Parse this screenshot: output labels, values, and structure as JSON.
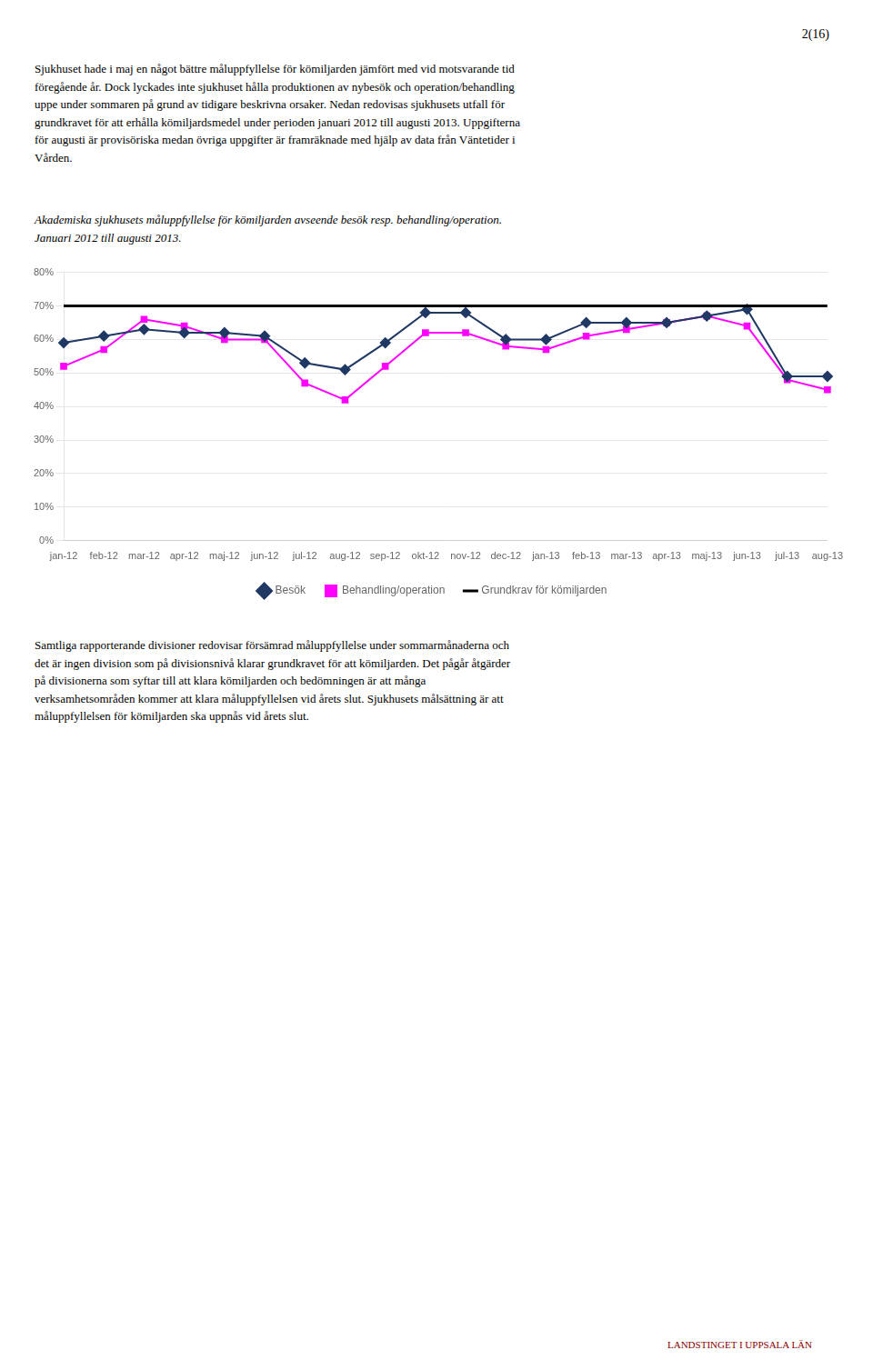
{
  "chart_data": {
    "type": "line",
    "title": "Akademiska sjukhusets måluppfyllelse för kömiljarden avseende besök resp. behandling/operation.\nJanuari 2012 till augusti 2013.",
    "categories": [
      "jan-12",
      "feb-12",
      "mar-12",
      "apr-12",
      "maj-12",
      "jun-12",
      "jul-12",
      "aug-12",
      "sep-12",
      "okt-12",
      "nov-12",
      "dec-12",
      "jan-13",
      "feb-13",
      "mar-13",
      "apr-13",
      "maj-13",
      "jun-13",
      "jul-13",
      "aug-13"
    ],
    "series": [
      {
        "name": "Besök",
        "color": "#1F3864",
        "marker": "diamond",
        "values": [
          0.59,
          0.61,
          0.63,
          0.62,
          0.62,
          0.61,
          0.53,
          0.51,
          0.59,
          0.68,
          0.68,
          0.6,
          0.6,
          0.65,
          0.65,
          0.65,
          0.67,
          0.69,
          0.49,
          0.49
        ]
      },
      {
        "name": "Behandling/operation",
        "color": "#FF00FF",
        "marker": "square",
        "values": [
          0.52,
          0.57,
          0.66,
          0.64,
          0.6,
          0.6,
          0.47,
          0.42,
          0.52,
          0.62,
          0.62,
          0.58,
          0.57,
          0.61,
          0.63,
          0.65,
          0.67,
          0.64,
          0.48,
          0.45
        ]
      },
      {
        "name": "Grundkrav för kömiljarden",
        "type": "hline",
        "color": "#000000",
        "value": 0.7
      }
    ],
    "ylim": [
      0.0,
      0.8
    ],
    "yticks": [
      {
        "value": 0.0,
        "label": "0%"
      },
      {
        "value": 0.1,
        "label": "10%"
      },
      {
        "value": 0.2,
        "label": "20%"
      },
      {
        "value": 0.3,
        "label": "30%"
      },
      {
        "value": 0.4,
        "label": "40%"
      },
      {
        "value": 0.5,
        "label": "50%"
      },
      {
        "value": 0.6,
        "label": "60%"
      },
      {
        "value": 0.7,
        "label": "70%"
      },
      {
        "value": 0.8,
        "label": "80%"
      }
    ],
    "grid": true,
    "legend": "bottom"
  },
  "page_number": "2(16)",
  "intro_text": "Sjukhuset hade i maj en något bättre måluppfyllelse för kömiljarden jämfört med vid motsvarande tid\nföregående år. Dock lyckades inte sjukhuset hålla produktionen av nybesök och operation/behandling\nuppe under sommaren på grund av tidigare beskrivna orsaker. Nedan redovisas sjukhusets utfall för\ngrundkravet för att erhålla kömiljardsmedel under perioden januari 2012 till augusti 2013. Uppgifterna\nför augusti är provisöriska medan övriga uppgifter är framräknade med hjälp av data från Väntetider i\nVården.",
  "bottom_text": "Samtliga rapporterande divisioner redovisar försämrad måluppfyllelse under sommarmånaderna och\ndet är ingen division som på divisionsnivå klarar grundkravet för att kömiljarden. Det pågår åtgärder\npå divisionerna som syftar till att klara kömiljarden och bedömningen är att många\nverksamhetsområden kommer att klara måluppfyllelsen vid årets slut. Sjukhusets målsättning är att\nmåluppfyllelsen för kömiljarden ska uppnås vid årets slut.",
  "footer_text": "LANDSTINGET I UPPSALA LÄN"
}
